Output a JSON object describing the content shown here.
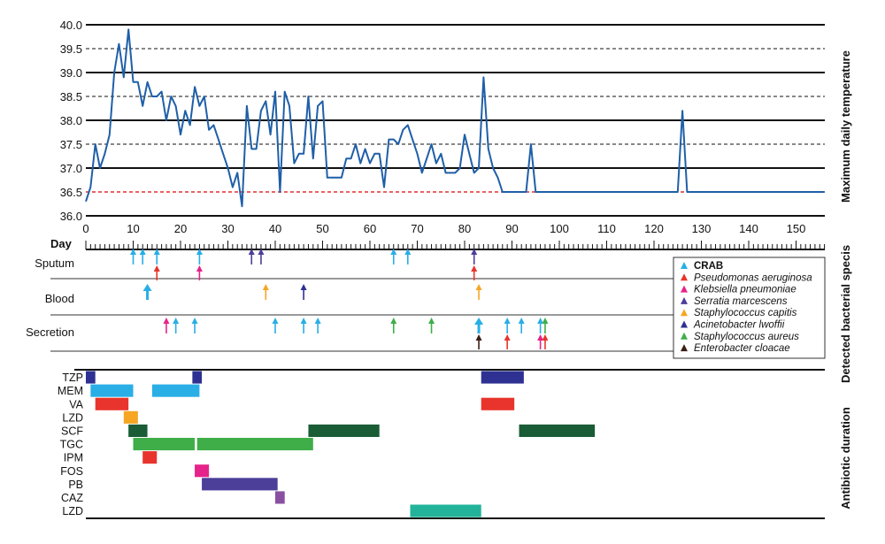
{
  "chart_data": [
    {
      "type": "line",
      "panel": "temperature",
      "ylabel": "Maximum daily temperature",
      "xlabel": "Day",
      "xlim": [
        0,
        156
      ],
      "ylim": [
        36.0,
        40.0
      ],
      "yticks": [
        "40.0",
        "39.5",
        "39.0",
        "38.5",
        "38.0",
        "37.5",
        "37.0",
        "36.5",
        "36.0"
      ],
      "xticks": [
        "0",
        "10",
        "20",
        "30",
        "40",
        "50",
        "60",
        "70",
        "80",
        "90",
        "100",
        "110",
        "120",
        "130",
        "140",
        "150"
      ],
      "reference_line": {
        "value": 36.5,
        "color": "#e03030"
      },
      "series": [
        {
          "color": "#1f5fa8",
          "x": [
            0,
            1,
            2,
            3,
            4,
            5,
            6,
            7,
            8,
            9,
            10,
            11,
            12,
            13,
            14,
            15,
            16,
            17,
            18,
            19,
            20,
            21,
            22,
            23,
            24,
            25,
            26,
            27,
            28,
            29,
            30,
            31,
            32,
            33,
            34,
            35,
            36,
            37,
            38,
            39,
            40,
            41,
            42,
            43,
            44,
            45,
            46,
            47,
            48,
            49,
            50,
            51,
            52,
            53,
            54,
            55,
            56,
            57,
            58,
            59,
            60,
            61,
            62,
            63,
            64,
            65,
            66,
            67,
            68,
            69,
            70,
            71,
            72,
            73,
            74,
            75,
            76,
            77,
            78,
            79,
            80,
            81,
            82,
            83,
            84,
            85,
            86,
            87,
            88,
            89,
            90,
            91,
            92,
            93,
            94,
            95,
            96,
            97,
            98,
            100,
            110,
            120,
            125,
            126,
            127,
            128,
            130,
            140,
            150,
            156
          ],
          "y": [
            36.3,
            36.6,
            37.5,
            37.0,
            37.3,
            37.7,
            39.0,
            39.6,
            38.9,
            39.9,
            38.8,
            38.8,
            38.3,
            38.8,
            38.5,
            38.5,
            38.6,
            38.0,
            38.5,
            38.3,
            37.7,
            38.2,
            37.9,
            38.7,
            38.3,
            38.5,
            37.8,
            37.9,
            37.6,
            37.3,
            37.0,
            36.6,
            36.9,
            36.2,
            38.3,
            37.4,
            37.4,
            38.2,
            38.4,
            37.7,
            38.6,
            36.5,
            38.6,
            38.3,
            37.1,
            37.3,
            37.3,
            38.5,
            37.2,
            38.3,
            38.4,
            36.8,
            36.8,
            36.8,
            36.8,
            37.2,
            37.2,
            37.5,
            37.1,
            37.4,
            37.1,
            37.3,
            37.3,
            36.6,
            37.6,
            37.6,
            37.5,
            37.8,
            37.9,
            37.6,
            37.3,
            36.9,
            37.2,
            37.5,
            37.1,
            37.3,
            36.9,
            36.9,
            36.9,
            37.0,
            37.7,
            37.3,
            36.9,
            37.0,
            38.9,
            37.4,
            37.0,
            36.8,
            36.5,
            36.5,
            36.5,
            36.5,
            36.5,
            36.5,
            37.5,
            36.5,
            36.5,
            36.5,
            36.5,
            36.5,
            36.5,
            36.5,
            36.5,
            38.2,
            36.5,
            36.5,
            36.5,
            36.5,
            36.5,
            36.5
          ]
        }
      ]
    },
    {
      "type": "scatter",
      "panel": "bacterial-detection",
      "ylabel": "Detected bacterial specis",
      "rows": [
        "Sputum",
        "Blood",
        "Secretion"
      ],
      "legend": [
        {
          "label": "CRAB",
          "color": "#29aee6",
          "bold": true
        },
        {
          "label": "Pseudomonas aeruginosa",
          "color": "#e8342c",
          "italic": true
        },
        {
          "label": "Klebsiella pneumoniae",
          "color": "#e6238a",
          "italic": true
        },
        {
          "label": "Serratia marcescens",
          "color": "#4b3f9a",
          "italic": true
        },
        {
          "label": "Staphylococcus capitis",
          "color": "#f6a623",
          "italic": true
        },
        {
          "label": "Acinetobacter lwoffii",
          "color": "#2e3191",
          "italic": true
        },
        {
          "label": "Staphylococcus aureus",
          "color": "#3fae49",
          "italic": true
        },
        {
          "label": "Enterobacter cloacae",
          "color": "#3b1e16",
          "italic": true
        }
      ],
      "detections": [
        {
          "row": "Sputum",
          "day": 10,
          "species": "CRAB"
        },
        {
          "row": "Sputum",
          "day": 12,
          "species": "CRAB"
        },
        {
          "row": "Sputum",
          "day": 15,
          "species": "CRAB"
        },
        {
          "row": "Sputum",
          "day": 15,
          "species": "Pseudomonas aeruginosa"
        },
        {
          "row": "Sputum",
          "day": 24,
          "species": "CRAB"
        },
        {
          "row": "Sputum",
          "day": 24,
          "species": "Klebsiella pneumoniae"
        },
        {
          "row": "Sputum",
          "day": 35,
          "species": "Serratia marcescens"
        },
        {
          "row": "Sputum",
          "day": 37,
          "species": "Serratia marcescens"
        },
        {
          "row": "Sputum",
          "day": 65,
          "species": "CRAB"
        },
        {
          "row": "Sputum",
          "day": 68,
          "species": "CRAB"
        },
        {
          "row": "Sputum",
          "day": 82,
          "species": "Serratia marcescens"
        },
        {
          "row": "Sputum",
          "day": 82,
          "species": "Pseudomonas aeruginosa"
        },
        {
          "row": "Blood",
          "day": 13,
          "species": "CRAB",
          "bold": true
        },
        {
          "row": "Blood",
          "day": 38,
          "species": "Staphylococcus capitis"
        },
        {
          "row": "Blood",
          "day": 46,
          "species": "Acinetobacter lwoffii"
        },
        {
          "row": "Blood",
          "day": 83,
          "species": "Staphylococcus capitis"
        },
        {
          "row": "Secretion",
          "day": 17,
          "species": "Klebsiella pneumoniae"
        },
        {
          "row": "Secretion",
          "day": 19,
          "species": "CRAB"
        },
        {
          "row": "Secretion",
          "day": 23,
          "species": "CRAB"
        },
        {
          "row": "Secretion",
          "day": 40,
          "species": "CRAB"
        },
        {
          "row": "Secretion",
          "day": 46,
          "species": "CRAB"
        },
        {
          "row": "Secretion",
          "day": 49,
          "species": "CRAB"
        },
        {
          "row": "Secretion",
          "day": 65,
          "species": "Staphylococcus aureus"
        },
        {
          "row": "Secretion",
          "day": 73,
          "species": "Staphylococcus aureus"
        },
        {
          "row": "Secretion",
          "day": 83,
          "species": "CRAB",
          "bold": true
        },
        {
          "row": "Secretion",
          "day": 83,
          "species": "Enterobacter cloacae"
        },
        {
          "row": "Secretion",
          "day": 89,
          "species": "CRAB"
        },
        {
          "row": "Secretion",
          "day": 89,
          "species": "Pseudomonas aeruginosa"
        },
        {
          "row": "Secretion",
          "day": 92,
          "species": "CRAB"
        },
        {
          "row": "Secretion",
          "day": 96,
          "species": "CRAB"
        },
        {
          "row": "Secretion",
          "day": 96,
          "species": "Klebsiella pneumoniae"
        },
        {
          "row": "Secretion",
          "day": 97,
          "species": "Staphylococcus aureus"
        },
        {
          "row": "Secretion",
          "day": 97,
          "species": "Pseudomonas aeruginosa"
        }
      ]
    },
    {
      "type": "bar",
      "panel": "antibiotic-duration",
      "orientation": "gantt",
      "ylabel": "Antibiotic duration",
      "rows": [
        "TZP",
        "MEM",
        "VA",
        "LZD",
        "SCF",
        "TGC",
        "IPM",
        "FOS",
        "PB",
        "CAZ",
        "LZD"
      ],
      "bars": [
        {
          "row": 0,
          "start": 0,
          "end": 2,
          "color": "#2e3191"
        },
        {
          "row": 0,
          "start": 22.5,
          "end": 24.5,
          "color": "#2e3191"
        },
        {
          "row": 0,
          "start": 83.5,
          "end": 92.5,
          "color": "#2e3191"
        },
        {
          "row": 1,
          "start": 1,
          "end": 10,
          "color": "#29aee6"
        },
        {
          "row": 1,
          "start": 14,
          "end": 24,
          "color": "#29aee6"
        },
        {
          "row": 2,
          "start": 2,
          "end": 9,
          "color": "#e8342c"
        },
        {
          "row": 2,
          "start": 83.5,
          "end": 90.5,
          "color": "#e8342c"
        },
        {
          "row": 3,
          "start": 8,
          "end": 11,
          "color": "#f6a623"
        },
        {
          "row": 4,
          "start": 9,
          "end": 13,
          "color": "#1a5c36"
        },
        {
          "row": 4,
          "start": 47,
          "end": 62,
          "color": "#1a5c36"
        },
        {
          "row": 4,
          "start": 91.5,
          "end": 107.5,
          "color": "#1a5c36"
        },
        {
          "row": 5,
          "start": 10,
          "end": 23,
          "color": "#3fae49"
        },
        {
          "row": 5,
          "start": 23.5,
          "end": 48,
          "color": "#3fae49"
        },
        {
          "row": 6,
          "start": 12,
          "end": 15,
          "color": "#e8342c"
        },
        {
          "row": 7,
          "start": 23,
          "end": 26,
          "color": "#e6238a"
        },
        {
          "row": 8,
          "start": 24.5,
          "end": 40.5,
          "color": "#4b3f9a"
        },
        {
          "row": 9,
          "start": 40,
          "end": 42,
          "color": "#8a4fa3"
        },
        {
          "row": 10,
          "start": 68.5,
          "end": 83.5,
          "color": "#22b39a"
        }
      ]
    }
  ]
}
